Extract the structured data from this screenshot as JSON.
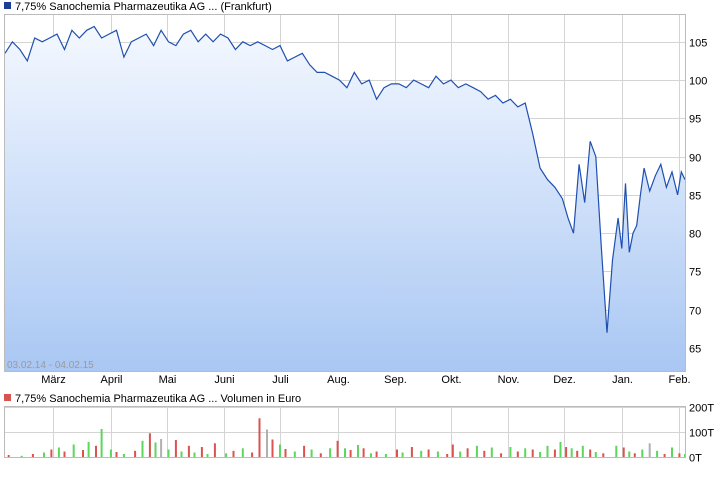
{
  "colors": {
    "price_line": "#1f4fb0",
    "area_top": "#f4f8ff",
    "area_bottom": "#a9c7f3",
    "grid": "#d4d4d4",
    "legend_price": "#1c3f95",
    "legend_volume": "#d9534f",
    "vol_up": "#5cd65c",
    "vol_down": "#d9534f",
    "vol_neutral": "#b0b0b0"
  },
  "chart_data": [
    {
      "type": "area",
      "title": "7,75% Sanochemia Pharmazeutika AG ... (Frankfurt)",
      "date_range_label": "03.02.14 - 04.02.15",
      "x_tick_labels": [
        "März",
        "April",
        "Mai",
        "Juni",
        "Juli",
        "Aug.",
        "Sep.",
        "Okt.",
        "Nov.",
        "Dez.",
        "Jan.",
        "Feb."
      ],
      "x_tick_dates": [
        "2014-03-01",
        "2014-04-01",
        "2014-05-01",
        "2014-06-01",
        "2014-07-01",
        "2014-08-01",
        "2014-09-01",
        "2014-10-01",
        "2014-11-01",
        "2014-12-01",
        "2015-01-01",
        "2015-02-01"
      ],
      "x_range": [
        "2014-02-03",
        "2015-02-04"
      ],
      "y_ticks": [
        65,
        70,
        75,
        80,
        85,
        90,
        95,
        100,
        105
      ],
      "y_tick_labels": [
        "65",
        "70",
        "75",
        "80",
        "85",
        "90",
        "95",
        "100",
        "105"
      ],
      "ylim": [
        62,
        108.5
      ],
      "grid": true,
      "series": [
        {
          "x": [
            "2014-02-03",
            "2014-02-07",
            "2014-02-11",
            "2014-02-15",
            "2014-02-19",
            "2014-02-23",
            "2014-02-27",
            "2014-03-03",
            "2014-03-07",
            "2014-03-11",
            "2014-03-15",
            "2014-03-19",
            "2014-03-23",
            "2014-03-27",
            "2014-03-31",
            "2014-04-04",
            "2014-04-08",
            "2014-04-12",
            "2014-04-16",
            "2014-04-20",
            "2014-04-24",
            "2014-04-28",
            "2014-05-02",
            "2014-05-06",
            "2014-05-10",
            "2014-05-14",
            "2014-05-18",
            "2014-05-22",
            "2014-05-26",
            "2014-05-30",
            "2014-06-03",
            "2014-06-07",
            "2014-06-11",
            "2014-06-15",
            "2014-06-19",
            "2014-06-23",
            "2014-06-27",
            "2014-07-01",
            "2014-07-05",
            "2014-07-09",
            "2014-07-13",
            "2014-07-17",
            "2014-07-21",
            "2014-07-25",
            "2014-07-29",
            "2014-08-02",
            "2014-08-06",
            "2014-08-10",
            "2014-08-14",
            "2014-08-18",
            "2014-08-22",
            "2014-08-26",
            "2014-08-30",
            "2014-09-03",
            "2014-09-07",
            "2014-09-11",
            "2014-09-15",
            "2014-09-19",
            "2014-09-23",
            "2014-09-27",
            "2014-10-01",
            "2014-10-05",
            "2014-10-09",
            "2014-10-13",
            "2014-10-17",
            "2014-10-21",
            "2014-10-25",
            "2014-10-29",
            "2014-11-02",
            "2014-11-06",
            "2014-11-10",
            "2014-11-14",
            "2014-11-18",
            "2014-11-22",
            "2014-11-26",
            "2014-11-30",
            "2014-12-03",
            "2014-12-06",
            "2014-12-09",
            "2014-12-12",
            "2014-12-15",
            "2014-12-18",
            "2014-12-21",
            "2014-12-24",
            "2014-12-27",
            "2014-12-30",
            "2015-01-01",
            "2015-01-03",
            "2015-01-05",
            "2015-01-07",
            "2015-01-09",
            "2015-01-11",
            "2015-01-13",
            "2015-01-16",
            "2015-01-19",
            "2015-01-22",
            "2015-01-25",
            "2015-01-28",
            "2015-01-31",
            "2015-02-02",
            "2015-02-04"
          ],
          "values": [
            103.5,
            105,
            104,
            102.5,
            105.5,
            105,
            105.5,
            106,
            104,
            106.5,
            105.5,
            106.5,
            107,
            105.5,
            106,
            106.5,
            103,
            105,
            105.5,
            106,
            104.5,
            106.5,
            105,
            104.5,
            106,
            106.5,
            105,
            106,
            105,
            106,
            105.5,
            104,
            105,
            104.5,
            105,
            104.5,
            104,
            104.5,
            102.5,
            103,
            103.5,
            102,
            101,
            101,
            100.5,
            100,
            99,
            101,
            99.5,
            100,
            97.5,
            99,
            99.5,
            99.5,
            99,
            100,
            99.5,
            99,
            100.5,
            99.5,
            100,
            99,
            99.5,
            99,
            98.5,
            97.5,
            98,
            97,
            97.5,
            96.5,
            97,
            93,
            88.5,
            87,
            86,
            84.5,
            82,
            80,
            89,
            84,
            92,
            90,
            78,
            67,
            76.5,
            82,
            78,
            86.5,
            77.5,
            80,
            81,
            85,
            88.5,
            85.5,
            87.5,
            89,
            86,
            88,
            85,
            88,
            87
          ]
        }
      ]
    },
    {
      "type": "bar",
      "title": "7,75% Sanochemia Pharmazeutika AG ... Volumen in Euro",
      "y_ticks": [
        0,
        100,
        200
      ],
      "y_tick_labels": [
        "0T",
        "100T",
        "200T"
      ],
      "y_unit": "T (thousand EUR)",
      "ylim": [
        0,
        200
      ],
      "grid": true,
      "bars": [
        {
          "date": "2014-02-05",
          "value": 8,
          "dir": "down"
        },
        {
          "date": "2014-02-12",
          "value": 5,
          "dir": "up"
        },
        {
          "date": "2014-02-18",
          "value": 12,
          "dir": "down"
        },
        {
          "date": "2014-02-24",
          "value": 18,
          "dir": "up"
        },
        {
          "date": "2014-02-28",
          "value": 30,
          "dir": "down"
        },
        {
          "date": "2014-03-04",
          "value": 38,
          "dir": "up"
        },
        {
          "date": "2014-03-07",
          "value": 22,
          "dir": "down"
        },
        {
          "date": "2014-03-12",
          "value": 50,
          "dir": "up"
        },
        {
          "date": "2014-03-17",
          "value": 28,
          "dir": "down"
        },
        {
          "date": "2014-03-20",
          "value": 60,
          "dir": "up"
        },
        {
          "date": "2014-03-24",
          "value": 45,
          "dir": "down"
        },
        {
          "date": "2014-03-27",
          "value": 112,
          "dir": "up"
        },
        {
          "date": "2014-04-01",
          "value": 30,
          "dir": "up"
        },
        {
          "date": "2014-04-04",
          "value": 20,
          "dir": "down"
        },
        {
          "date": "2014-04-08",
          "value": 12,
          "dir": "up"
        },
        {
          "date": "2014-04-14",
          "value": 25,
          "dir": "down"
        },
        {
          "date": "2014-04-18",
          "value": 65,
          "dir": "up"
        },
        {
          "date": "2014-04-22",
          "value": 95,
          "dir": "down"
        },
        {
          "date": "2014-04-25",
          "value": 58,
          "dir": "up"
        },
        {
          "date": "2014-04-28",
          "value": 72,
          "dir": "neutral"
        },
        {
          "date": "2014-05-02",
          "value": 30,
          "dir": "up"
        },
        {
          "date": "2014-05-06",
          "value": 68,
          "dir": "down"
        },
        {
          "date": "2014-05-09",
          "value": 22,
          "dir": "up"
        },
        {
          "date": "2014-05-13",
          "value": 45,
          "dir": "down"
        },
        {
          "date": "2014-05-16",
          "value": 18,
          "dir": "up"
        },
        {
          "date": "2014-05-20",
          "value": 40,
          "dir": "down"
        },
        {
          "date": "2014-05-23",
          "value": 12,
          "dir": "up"
        },
        {
          "date": "2014-05-27",
          "value": 55,
          "dir": "down"
        },
        {
          "date": "2014-06-02",
          "value": 15,
          "dir": "up"
        },
        {
          "date": "2014-06-06",
          "value": 25,
          "dir": "down"
        },
        {
          "date": "2014-06-11",
          "value": 35,
          "dir": "up"
        },
        {
          "date": "2014-06-16",
          "value": 18,
          "dir": "down"
        },
        {
          "date": "2014-06-20",
          "value": 155,
          "dir": "down"
        },
        {
          "date": "2014-06-24",
          "value": 110,
          "dir": "neutral"
        },
        {
          "date": "2014-06-27",
          "value": 70,
          "dir": "down"
        },
        {
          "date": "2014-07-01",
          "value": 50,
          "dir": "up"
        },
        {
          "date": "2014-07-04",
          "value": 32,
          "dir": "down"
        },
        {
          "date": "2014-07-09",
          "value": 22,
          "dir": "up"
        },
        {
          "date": "2014-07-14",
          "value": 45,
          "dir": "down"
        },
        {
          "date": "2014-07-18",
          "value": 30,
          "dir": "up"
        },
        {
          "date": "2014-07-23",
          "value": 15,
          "dir": "down"
        },
        {
          "date": "2014-07-28",
          "value": 35,
          "dir": "up"
        },
        {
          "date": "2014-08-01",
          "value": 65,
          "dir": "down"
        },
        {
          "date": "2014-08-05",
          "value": 35,
          "dir": "up"
        },
        {
          "date": "2014-08-08",
          "value": 28,
          "dir": "down"
        },
        {
          "date": "2014-08-12",
          "value": 48,
          "dir": "up"
        },
        {
          "date": "2014-08-15",
          "value": 35,
          "dir": "down"
        },
        {
          "date": "2014-08-19",
          "value": 15,
          "dir": "up"
        },
        {
          "date": "2014-08-22",
          "value": 22,
          "dir": "down"
        },
        {
          "date": "2014-08-27",
          "value": 12,
          "dir": "up"
        },
        {
          "date": "2014-09-02",
          "value": 30,
          "dir": "down"
        },
        {
          "date": "2014-09-05",
          "value": 18,
          "dir": "up"
        },
        {
          "date": "2014-09-10",
          "value": 40,
          "dir": "down"
        },
        {
          "date": "2014-09-15",
          "value": 25,
          "dir": "up"
        },
        {
          "date": "2014-09-19",
          "value": 30,
          "dir": "down"
        },
        {
          "date": "2014-09-24",
          "value": 22,
          "dir": "up"
        },
        {
          "date": "2014-09-29",
          "value": 12,
          "dir": "down"
        },
        {
          "date": "2014-10-02",
          "value": 50,
          "dir": "down"
        },
        {
          "date": "2014-10-06",
          "value": 22,
          "dir": "up"
        },
        {
          "date": "2014-10-10",
          "value": 35,
          "dir": "down"
        },
        {
          "date": "2014-10-15",
          "value": 45,
          "dir": "up"
        },
        {
          "date": "2014-10-19",
          "value": 25,
          "dir": "down"
        },
        {
          "date": "2014-10-23",
          "value": 38,
          "dir": "up"
        },
        {
          "date": "2014-10-28",
          "value": 15,
          "dir": "down"
        },
        {
          "date": "2014-11-02",
          "value": 40,
          "dir": "up"
        },
        {
          "date": "2014-11-06",
          "value": 22,
          "dir": "down"
        },
        {
          "date": "2014-11-10",
          "value": 35,
          "dir": "up"
        },
        {
          "date": "2014-11-14",
          "value": 30,
          "dir": "down"
        },
        {
          "date": "2014-11-18",
          "value": 20,
          "dir": "up"
        },
        {
          "date": "2014-11-22",
          "value": 45,
          "dir": "up"
        },
        {
          "date": "2014-11-26",
          "value": 30,
          "dir": "down"
        },
        {
          "date": "2014-11-29",
          "value": 60,
          "dir": "up"
        },
        {
          "date": "2014-12-02",
          "value": 40,
          "dir": "down"
        },
        {
          "date": "2014-12-05",
          "value": 35,
          "dir": "up"
        },
        {
          "date": "2014-12-08",
          "value": 25,
          "dir": "down"
        },
        {
          "date": "2014-12-11",
          "value": 45,
          "dir": "up"
        },
        {
          "date": "2014-12-15",
          "value": 30,
          "dir": "down"
        },
        {
          "date": "2014-12-18",
          "value": 20,
          "dir": "up"
        },
        {
          "date": "2014-12-22",
          "value": 15,
          "dir": "down"
        },
        {
          "date": "2014-12-29",
          "value": 45,
          "dir": "up"
        },
        {
          "date": "2015-01-02",
          "value": 38,
          "dir": "down"
        },
        {
          "date": "2015-01-05",
          "value": 22,
          "dir": "up"
        },
        {
          "date": "2015-01-08",
          "value": 15,
          "dir": "down"
        },
        {
          "date": "2015-01-12",
          "value": 30,
          "dir": "up"
        },
        {
          "date": "2015-01-16",
          "value": 55,
          "dir": "neutral"
        },
        {
          "date": "2015-01-20",
          "value": 25,
          "dir": "up"
        },
        {
          "date": "2015-01-24",
          "value": 12,
          "dir": "down"
        },
        {
          "date": "2015-01-28",
          "value": 38,
          "dir": "up"
        },
        {
          "date": "2015-02-01",
          "value": 15,
          "dir": "down"
        },
        {
          "date": "2015-02-04",
          "value": 12,
          "dir": "up"
        }
      ]
    }
  ]
}
